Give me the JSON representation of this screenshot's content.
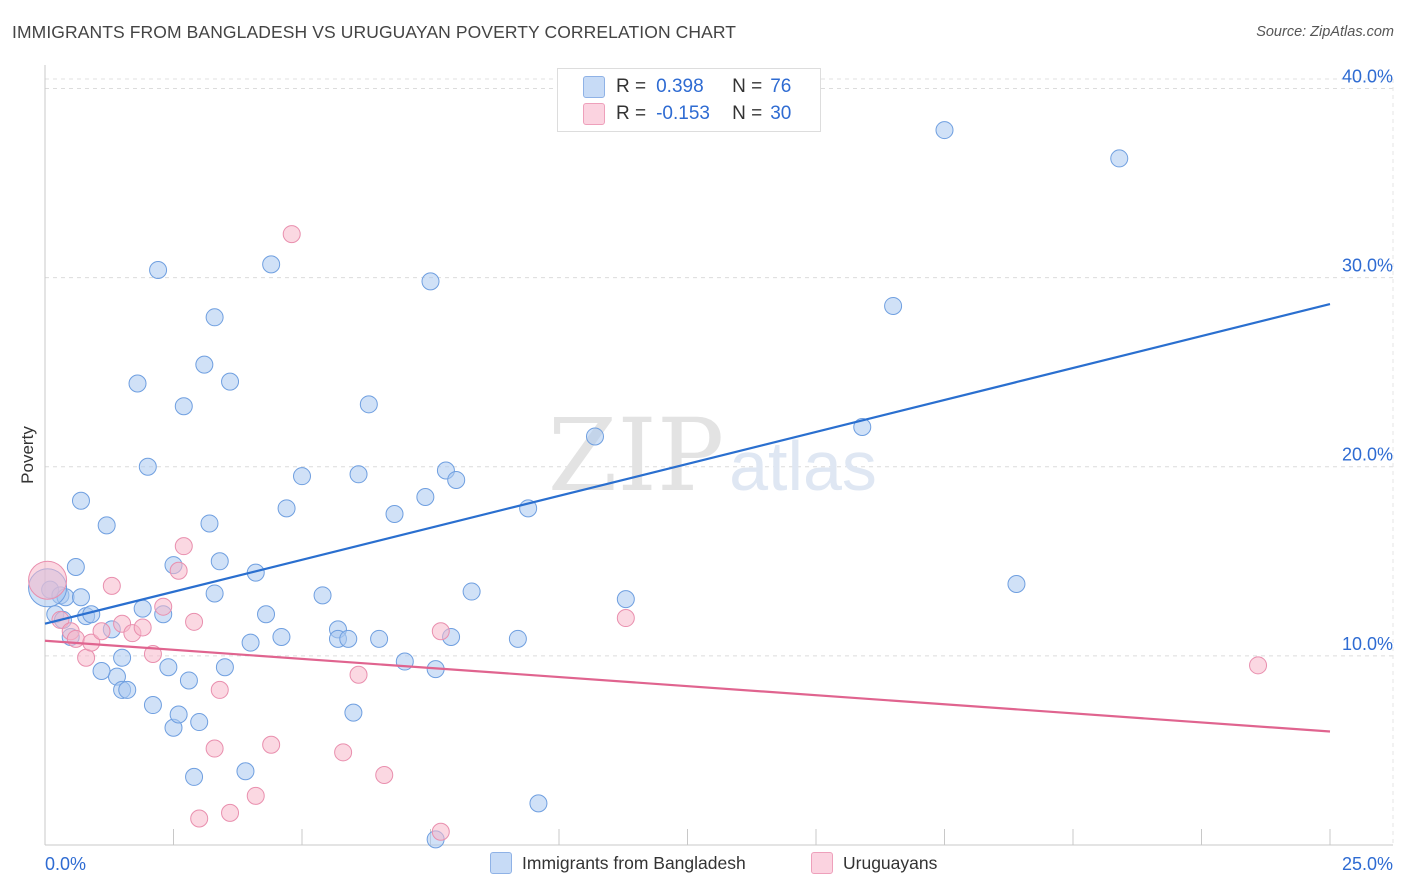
{
  "header": {
    "title": "IMMIGRANTS FROM BANGLADESH VS URUGUAYAN POVERTY CORRELATION CHART",
    "source": "Source: ZipAtlas.com"
  },
  "watermark": {
    "zip": "ZIP",
    "atlas": "atlas"
  },
  "legend": {
    "rows": [
      {
        "r_label": "R =",
        "r_value": "0.398",
        "n_label": "N =",
        "n_value": "76",
        "color": "#a9c8f0"
      },
      {
        "r_label": "R =",
        "r_value": "-0.153",
        "n_label": "N =",
        "n_value": "30",
        "color": "#f7b8cb"
      }
    ]
  },
  "bottom_legend": [
    {
      "label": "Immigrants from Bangladesh",
      "color": "#a9c8f0"
    },
    {
      "label": "Uruguayans",
      "color": "#f7b8cb"
    }
  ],
  "chart_data": {
    "type": "scatter",
    "title": "IMMIGRANTS FROM BANGLADESH VS URUGUAYAN POVERTY CORRELATION CHART",
    "xlabel": "",
    "ylabel": "Poverty",
    "xlim": [
      0,
      25
    ],
    "ylim": [
      0,
      40.5
    ],
    "x_tick_labels": [
      "0.0%",
      "25.0%"
    ],
    "y_ticks": [
      10,
      20,
      30,
      40
    ],
    "y_tick_labels": [
      "10.0%",
      "20.0%",
      "30.0%",
      "40.0%"
    ],
    "grid": true,
    "legend_position": "top-center",
    "series": [
      {
        "name": "Immigrants from Bangladesh",
        "color": "#6f9fe0",
        "fill": "#a9c8f0",
        "trend": {
          "x": [
            0,
            25
          ],
          "y": [
            11.7,
            28.6
          ],
          "color": "#2a6fcf"
        },
        "points": [
          [
            0.1,
            13.5
          ],
          [
            0.2,
            12.2
          ],
          [
            0.3,
            13.2
          ],
          [
            0.35,
            11.9
          ],
          [
            0.4,
            13.1
          ],
          [
            0.5,
            11.0
          ],
          [
            0.6,
            14.7
          ],
          [
            0.7,
            13.1
          ],
          [
            0.8,
            12.1
          ],
          [
            0.9,
            12.2
          ],
          [
            0.7,
            18.2
          ],
          [
            1.2,
            16.9
          ],
          [
            1.3,
            11.4
          ],
          [
            1.4,
            8.9
          ],
          [
            1.5,
            8.2
          ],
          [
            1.5,
            9.9
          ],
          [
            1.6,
            8.2
          ],
          [
            1.1,
            9.2
          ],
          [
            1.8,
            24.4
          ],
          [
            1.9,
            12.5
          ],
          [
            2.0,
            20.0
          ],
          [
            2.1,
            7.4
          ],
          [
            2.2,
            30.4
          ],
          [
            2.3,
            12.2
          ],
          [
            2.4,
            9.4
          ],
          [
            2.5,
            6.2
          ],
          [
            2.5,
            14.8
          ],
          [
            2.6,
            6.9
          ],
          [
            2.7,
            23.2
          ],
          [
            2.8,
            8.7
          ],
          [
            2.9,
            3.6
          ],
          [
            3.0,
            6.5
          ],
          [
            3.1,
            25.4
          ],
          [
            3.2,
            17.0
          ],
          [
            3.3,
            13.3
          ],
          [
            3.3,
            27.9
          ],
          [
            3.4,
            15.0
          ],
          [
            3.5,
            9.4
          ],
          [
            3.6,
            24.5
          ],
          [
            3.9,
            3.9
          ],
          [
            4.0,
            10.7
          ],
          [
            4.1,
            14.4
          ],
          [
            4.3,
            12.2
          ],
          [
            4.4,
            30.7
          ],
          [
            4.6,
            11.0
          ],
          [
            4.7,
            17.8
          ],
          [
            5.0,
            19.5
          ],
          [
            5.4,
            13.2
          ],
          [
            5.7,
            11.4
          ],
          [
            5.7,
            10.9
          ],
          [
            5.9,
            10.9
          ],
          [
            6.0,
            7.0
          ],
          [
            6.1,
            19.6
          ],
          [
            6.3,
            23.3
          ],
          [
            6.5,
            10.9
          ],
          [
            6.8,
            17.5
          ],
          [
            7.0,
            9.7
          ],
          [
            7.4,
            18.4
          ],
          [
            7.6,
            0.3
          ],
          [
            7.5,
            29.8
          ],
          [
            7.6,
            9.3
          ],
          [
            7.8,
            19.8
          ],
          [
            7.9,
            11.0
          ],
          [
            8.0,
            19.3
          ],
          [
            8.3,
            13.4
          ],
          [
            9.2,
            10.9
          ],
          [
            9.4,
            17.8
          ],
          [
            9.6,
            2.2
          ],
          [
            10.7,
            21.6
          ],
          [
            11.3,
            13.0
          ],
          [
            15.9,
            22.1
          ],
          [
            16.5,
            28.5
          ],
          [
            17.5,
            37.8
          ],
          [
            18.9,
            13.8
          ],
          [
            20.9,
            36.3
          ],
          [
            0.05,
            13.6
          ]
        ]
      },
      {
        "name": "Uruguayans",
        "color": "#e98fae",
        "fill": "#f7b8cb",
        "trend": {
          "x": [
            0,
            25
          ],
          "y": [
            10.8,
            6.0
          ],
          "color": "#e0648f"
        },
        "points": [
          [
            0.05,
            14.0
          ],
          [
            0.3,
            11.9
          ],
          [
            0.5,
            11.3
          ],
          [
            0.6,
            10.9
          ],
          [
            0.8,
            9.9
          ],
          [
            0.9,
            10.7
          ],
          [
            1.1,
            11.3
          ],
          [
            1.3,
            13.7
          ],
          [
            1.5,
            11.7
          ],
          [
            1.7,
            11.2
          ],
          [
            1.9,
            11.5
          ],
          [
            2.1,
            10.1
          ],
          [
            2.3,
            12.6
          ],
          [
            2.6,
            14.5
          ],
          [
            2.7,
            15.8
          ],
          [
            2.9,
            11.8
          ],
          [
            3.0,
            1.4
          ],
          [
            3.3,
            5.1
          ],
          [
            3.4,
            8.2
          ],
          [
            3.6,
            1.7
          ],
          [
            4.1,
            2.6
          ],
          [
            4.4,
            5.3
          ],
          [
            4.8,
            32.3
          ],
          [
            5.8,
            4.9
          ],
          [
            6.1,
            9.0
          ],
          [
            6.6,
            3.7
          ],
          [
            7.7,
            11.3
          ],
          [
            7.7,
            0.7
          ],
          [
            11.3,
            12.0
          ],
          [
            23.6,
            9.5
          ]
        ]
      }
    ]
  }
}
